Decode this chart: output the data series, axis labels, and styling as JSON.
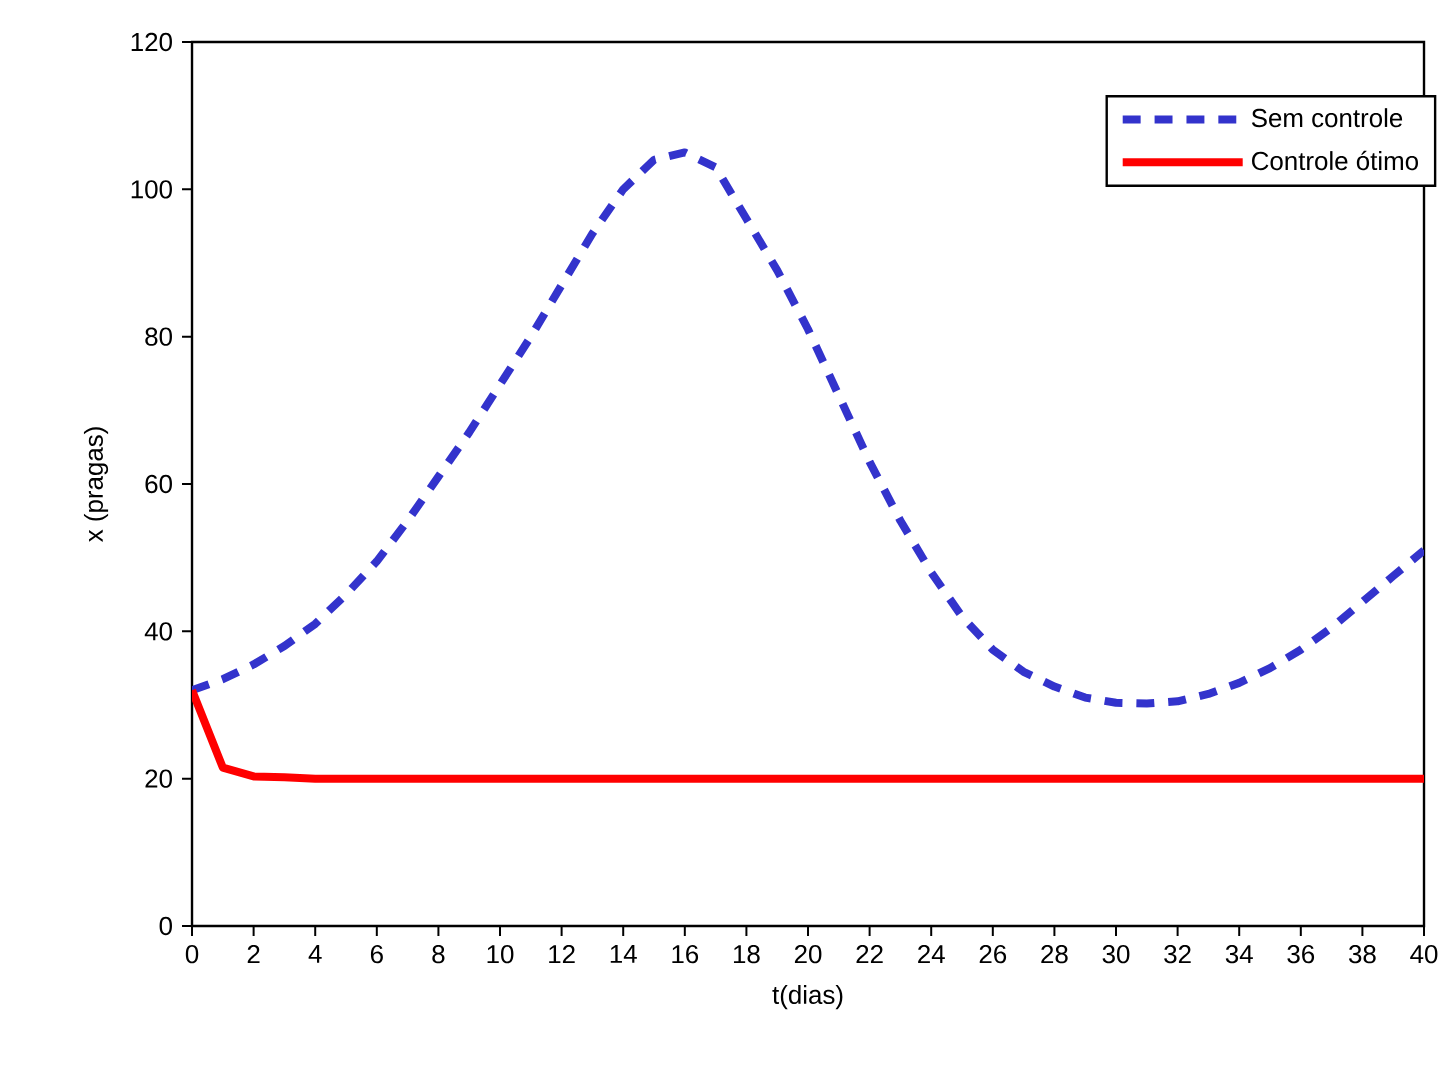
{
  "chart_data": {
    "type": "line",
    "xlabel": "t(dias)",
    "ylabel": "x (pragas)",
    "x": [
      0,
      1,
      2,
      3,
      4,
      5,
      6,
      7,
      8,
      9,
      10,
      11,
      12,
      13,
      14,
      15,
      16,
      17,
      18,
      19,
      20,
      21,
      22,
      23,
      24,
      25,
      26,
      27,
      28,
      29,
      30,
      31,
      32,
      33,
      34,
      35,
      36,
      37,
      38,
      39,
      40
    ],
    "series": [
      {
        "name": "Sem controle",
        "color": "#3333cc",
        "line_style": "dashed",
        "values": [
          32,
          33.5,
          35.5,
          38,
          41,
          45,
          49.5,
          55,
          61,
          67,
          73.5,
          80,
          87,
          94,
          100,
          104,
          105,
          103,
          96,
          89,
          81,
          72,
          63,
          55,
          48,
          42,
          37.5,
          34.5,
          32.5,
          31,
          30.3,
          30.2,
          30.5,
          31.5,
          33,
          35,
          37.5,
          40.5,
          44,
          47.5,
          51
        ]
      },
      {
        "name": "Controle ótimo",
        "color": "#ff0000",
        "line_style": "solid",
        "values": [
          32,
          21.5,
          20.3,
          20.2,
          20,
          20,
          20,
          20,
          20,
          20,
          20,
          20,
          20,
          20,
          20,
          20,
          20,
          20,
          20,
          20,
          20,
          20,
          20,
          20,
          20,
          20,
          20,
          20,
          20,
          20,
          20,
          20,
          20,
          20,
          20,
          20,
          20,
          20,
          20,
          20,
          20
        ]
      }
    ],
    "xlim": [
      0,
      40
    ],
    "xticks": [
      0,
      2,
      4,
      6,
      8,
      10,
      12,
      14,
      16,
      18,
      20,
      22,
      24,
      26,
      28,
      30,
      32,
      34,
      36,
      38,
      40
    ],
    "ylim": [
      0,
      120
    ],
    "yticks": [
      0,
      20,
      40,
      60,
      80,
      100,
      120
    ],
    "legend": "top right",
    "grid": false,
    "marker": "none"
  }
}
